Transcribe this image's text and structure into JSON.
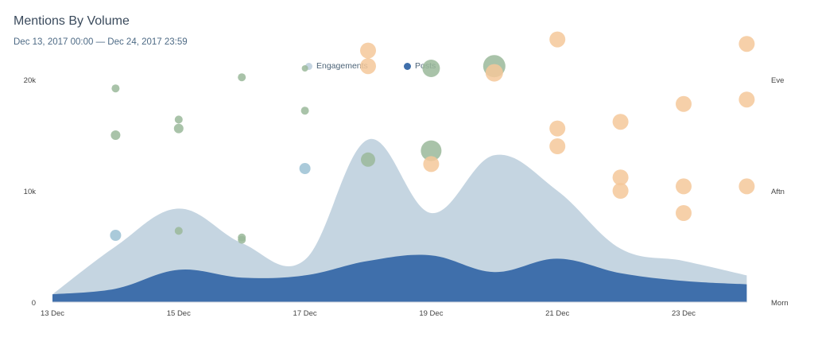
{
  "title": "Mentions By Volume",
  "subtitle": "Dec 13, 2017 00:00 — Dec 24, 2017 23:59",
  "colors": {
    "engagements": "#c5d5e1",
    "posts": "#3f6fab",
    "green": "#9ab89a",
    "orange": "#f5c89a",
    "blue": "#9bc1d3"
  },
  "chart_data": {
    "type": "area",
    "title": "Mentions By Volume",
    "subtitle": "Dec 13, 2017 00:00 — Dec 24, 2017 23:59",
    "legend": {
      "position": "top-center",
      "entries": [
        "Engagements",
        "Posts"
      ]
    },
    "x": [
      "13 Dec",
      "14 Dec",
      "15 Dec",
      "16 Dec",
      "17 Dec",
      "18 Dec",
      "19 Dec",
      "20 Dec",
      "21 Dec",
      "22 Dec",
      "23 Dec",
      "24 Dec"
    ],
    "x_tick_labels": [
      "13 Dec",
      "15 Dec",
      "17 Dec",
      "19 Dec",
      "21 Dec",
      "23 Dec"
    ],
    "ylim": [
      0,
      20000
    ],
    "y_tick_labels": [
      "0",
      "10k",
      "20k"
    ],
    "y2_tick_labels": [
      "Morn",
      "Aftn",
      "Eve"
    ],
    "grid": false,
    "series": [
      {
        "name": "Engagements",
        "values": [
          700,
          5000,
          8400,
          5300,
          3800,
          14600,
          8000,
          13200,
          10000,
          4800,
          3700,
          2400
        ]
      },
      {
        "name": "Posts",
        "values": [
          700,
          1200,
          2900,
          2200,
          2400,
          3700,
          4200,
          2700,
          3900,
          2600,
          1900,
          1600
        ]
      }
    ],
    "bubbles": [
      {
        "x": "14 Dec",
        "time": 0.96,
        "size": 5,
        "color": "green"
      },
      {
        "x": "14 Dec",
        "time": 0.75,
        "size": 6,
        "color": "green"
      },
      {
        "x": "14 Dec",
        "time": 0.3,
        "size": 7,
        "color": "blue"
      },
      {
        "x": "15 Dec",
        "time": 0.82,
        "size": 5,
        "color": "green"
      },
      {
        "x": "15 Dec",
        "time": 0.78,
        "size": 6,
        "color": "green"
      },
      {
        "x": "15 Dec",
        "time": 0.32,
        "size": 5,
        "color": "green"
      },
      {
        "x": "16 Dec",
        "time": 1.01,
        "size": 5,
        "color": "green"
      },
      {
        "x": "16 Dec",
        "time": 0.29,
        "size": 5,
        "color": "green"
      },
      {
        "x": "16 Dec",
        "time": 0.28,
        "size": 5,
        "color": "green"
      },
      {
        "x": "17 Dec",
        "time": 1.05,
        "size": 4,
        "color": "green"
      },
      {
        "x": "17 Dec",
        "time": 0.86,
        "size": 5,
        "color": "green"
      },
      {
        "x": "17 Dec",
        "time": 0.6,
        "size": 7,
        "color": "blue"
      },
      {
        "x": "18 Dec",
        "time": 1.13,
        "size": 10,
        "color": "orange"
      },
      {
        "x": "18 Dec",
        "time": 1.06,
        "size": 10,
        "color": "orange"
      },
      {
        "x": "18 Dec",
        "time": 0.64,
        "size": 9,
        "color": "green"
      },
      {
        "x": "19 Dec",
        "time": 1.05,
        "size": 11,
        "color": "green"
      },
      {
        "x": "19 Dec",
        "time": 0.68,
        "size": 13,
        "color": "green"
      },
      {
        "x": "19 Dec",
        "time": 0.62,
        "size": 10,
        "color": "orange"
      },
      {
        "x": "20 Dec",
        "time": 1.06,
        "size": 14,
        "color": "green"
      },
      {
        "x": "20 Dec",
        "time": 1.03,
        "size": 11,
        "color": "orange"
      },
      {
        "x": "21 Dec",
        "time": 1.18,
        "size": 10,
        "color": "orange"
      },
      {
        "x": "21 Dec",
        "time": 0.78,
        "size": 10,
        "color": "orange"
      },
      {
        "x": "21 Dec",
        "time": 0.7,
        "size": 10,
        "color": "orange"
      },
      {
        "x": "22 Dec",
        "time": 0.81,
        "size": 10,
        "color": "orange"
      },
      {
        "x": "22 Dec",
        "time": 0.56,
        "size": 10,
        "color": "orange"
      },
      {
        "x": "22 Dec",
        "time": 0.5,
        "size": 10,
        "color": "orange"
      },
      {
        "x": "23 Dec",
        "time": 0.89,
        "size": 10,
        "color": "orange"
      },
      {
        "x": "23 Dec",
        "time": 0.52,
        "size": 10,
        "color": "orange"
      },
      {
        "x": "23 Dec",
        "time": 0.4,
        "size": 10,
        "color": "orange"
      },
      {
        "x": "24 Dec",
        "time": 1.16,
        "size": 10,
        "color": "orange"
      },
      {
        "x": "24 Dec",
        "time": 0.91,
        "size": 10,
        "color": "orange"
      },
      {
        "x": "24 Dec",
        "time": 0.52,
        "size": 10,
        "color": "orange"
      }
    ]
  }
}
